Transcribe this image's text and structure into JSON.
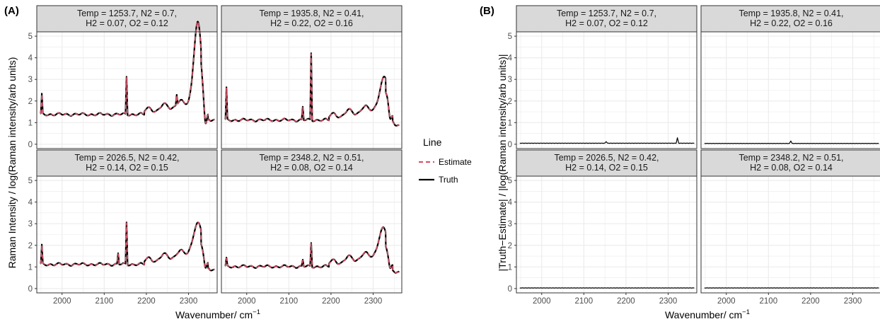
{
  "panel_tags": {
    "a": "(A)",
    "b": "(B)"
  },
  "axis_labels": {
    "x_main": "Wavenumber/ cm",
    "x_sup": "−1",
    "ylabel_a": "Raman Intensity / log(Raman intensity/arb units)",
    "ylabel_b": "|Truth−Estimate| / |log(Raman intensity/arb units)|"
  },
  "legend": {
    "title": "Line",
    "items": [
      {
        "label": "Estimate",
        "color": "#d9546a",
        "dash": true
      },
      {
        "label": "Truth",
        "color": "#000000",
        "dash": false
      }
    ]
  },
  "colors": {
    "strip_bg": "#d9d9d9",
    "grid": "#ebebeb",
    "estimate": "#d9546a",
    "truth": "#000000"
  },
  "chart_data": [
    {
      "type": "line",
      "panel": "(A)",
      "facets": [
        {
          "strip": [
            "Temp = 1253.7, N2 = 0.7,",
            "H2 = 0.07, O2 = 0.12"
          ],
          "base": 1.38,
          "spikes": [
            [
              1952,
              0.9
            ],
            [
              2153,
              1.75
            ],
            [
              2272,
              0.45
            ]
          ],
          "bump": [
            [
              2322,
              3.5,
              9
            ]
          ],
          "dip": [
            [
              2340,
              -0.9
            ]
          ]
        },
        {
          "strip": [
            "Temp = 1935.8, N2 = 0.41,",
            "H2 = 0.22, O2 = 0.16"
          ],
          "base": 1.12,
          "spikes": [
            [
              1952,
              1.45
            ],
            [
              2133,
              0.6
            ],
            [
              2153,
              3.1
            ]
          ],
          "bump": [
            [
              2328,
              1.3,
              10
            ]
          ],
          "dip": [
            [
              2340,
              -0.6
            ]
          ]
        },
        {
          "strip": [
            "Temp = 2026.5, N2 = 0.42,",
            "H2 = 0.14, O2 = 0.15"
          ],
          "base": 1.12,
          "spikes": [
            [
              1952,
              0.85
            ],
            [
              2133,
              0.5
            ],
            [
              2153,
              1.95
            ]
          ],
          "bump": [
            [
              2323,
              1.15,
              11
            ]
          ],
          "dip": [
            [
              2340,
              -0.55
            ]
          ]
        },
        {
          "strip": [
            "Temp = 2348.2, N2 = 0.51,",
            "H2 = 0.08, O2 = 0.14"
          ],
          "base": 1.02,
          "spikes": [
            [
              1952,
              0.35
            ],
            [
              2133,
              0.3
            ],
            [
              2153,
              1.1
            ]
          ],
          "bump": [
            [
              2325,
              1.05,
              10
            ]
          ],
          "dip": [
            [
              2340,
              -0.45
            ]
          ]
        }
      ],
      "x_range": [
        1940,
        2368
      ],
      "x_ticks": [
        2000,
        2100,
        2200,
        2300
      ],
      "y_range": [
        -0.2,
        5.2
      ],
      "y_ticks": [
        0,
        1,
        2,
        3,
        4,
        5
      ],
      "series": [
        {
          "name": "Estimate"
        },
        {
          "name": "Truth"
        }
      ]
    },
    {
      "type": "line",
      "panel": "(B)",
      "facets": [
        {
          "strip": [
            "Temp = 1253.7, N2 = 0.7,",
            "H2 = 0.07, O2 = 0.12"
          ],
          "level": 0.04,
          "spikes": [
            [
              2153,
              0.08
            ],
            [
              2322,
              0.25
            ]
          ]
        },
        {
          "strip": [
            "Temp = 1935.8, N2 = 0.41,",
            "H2 = 0.22, O2 = 0.16"
          ],
          "level": 0.03,
          "spikes": [
            [
              2153,
              0.12
            ]
          ]
        },
        {
          "strip": [
            "Temp = 2026.5, N2 = 0.42,",
            "H2 = 0.14, O2 = 0.15"
          ],
          "level": 0.02,
          "spikes": []
        },
        {
          "strip": [
            "Temp = 2348.2, N2 = 0.51,",
            "H2 = 0.08, O2 = 0.14"
          ],
          "level": 0.02,
          "spikes": []
        }
      ],
      "x_range": [
        1940,
        2368
      ],
      "x_ticks": [
        2000,
        2100,
        2200,
        2300
      ],
      "y_range": [
        -0.2,
        5.2
      ],
      "y_ticks": [
        0,
        1,
        2,
        3,
        4,
        5
      ],
      "series": [
        {
          "name": "Truth"
        }
      ]
    }
  ]
}
